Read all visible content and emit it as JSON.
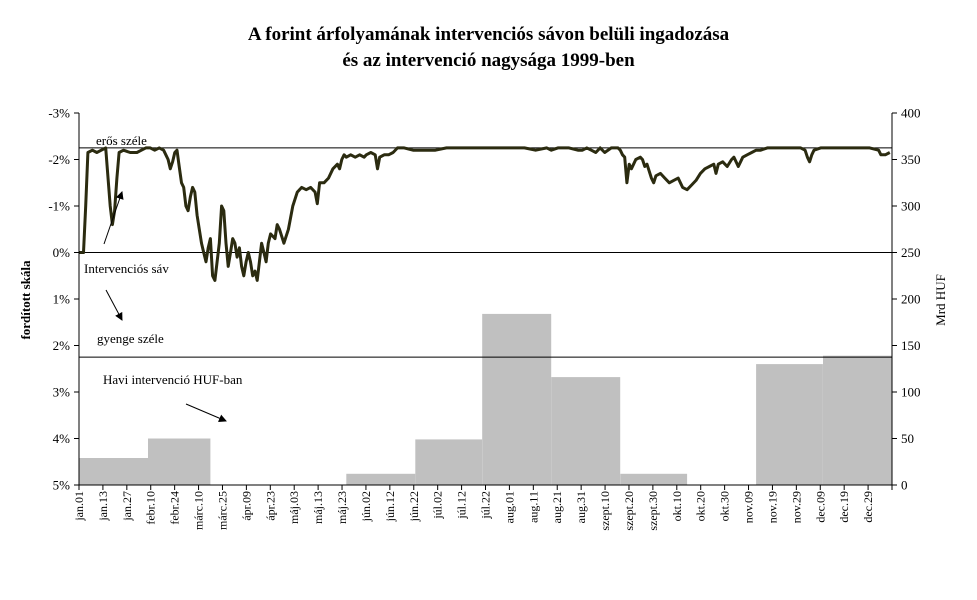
{
  "title": {
    "line1": "A forint árfolyamának intervenciós sávon belüli ingadozása",
    "line2": "és az intervenció nagysága 1999-ben"
  },
  "chart_data": {
    "type": "bar+line",
    "left_axis": {
      "label": "fordított skála",
      "ticks": [
        "-3%",
        "-2%",
        "-1%",
        "0%",
        "1%",
        "2%",
        "3%",
        "4%",
        "5%"
      ],
      "range": [
        -3,
        5
      ],
      "reversed": true
    },
    "right_axis": {
      "label": "Mrd HUF",
      "ticks": [
        "400",
        "350",
        "300",
        "250",
        "200",
        "150",
        "100",
        "50",
        "0"
      ],
      "range": [
        0,
        400
      ]
    },
    "x_ticks": [
      "jan.01",
      "jan.13",
      "jan.27",
      "febr.10",
      "febr.24",
      "márc.10",
      "márc.25",
      "ápr.09",
      "ápr.23",
      "máj.03",
      "máj.13",
      "máj.23",
      "jún.02",
      "jún.12",
      "jún.22",
      "júl.02",
      "júl.12",
      "júl.22",
      "aug.01",
      "aug.11",
      "aug.21",
      "aug.31",
      "szept.10",
      "szept.20",
      "szept.30",
      "okt.10",
      "okt.20",
      "okt.30",
      "nov.09",
      "nov.19",
      "nov.29",
      "dec.09",
      "dec.19",
      "dec.29"
    ],
    "reference_lines": [
      {
        "name": "erős széle",
        "value": -2.25
      },
      {
        "name": "0%",
        "value": 0
      },
      {
        "name": "gyenge széle",
        "value": 2.25
      }
    ],
    "annotations": [
      "erős széle",
      "Intervenciós sáv",
      "gyenge széle",
      "Havi intervenció HUF-ban"
    ],
    "bars": {
      "name": "Havi intervenció HUF-ban",
      "unit": "Mrd HUF",
      "months": [
        "jan",
        "feb",
        "márc",
        "ápr",
        "máj",
        "jún",
        "júl",
        "aug",
        "szept",
        "okt",
        "nov",
        "dec"
      ],
      "values": [
        29,
        50,
        0,
        0,
        12,
        49,
        184,
        116,
        12,
        0,
        130,
        139
      ]
    },
    "line": {
      "name": "Intervenciós sáv",
      "unit": "% (fordított skála)",
      "points": [
        [
          0,
          0.0
        ],
        [
          2,
          0.0
        ],
        [
          3,
          -1.0
        ],
        [
          4,
          -2.15
        ],
        [
          6,
          -2.2
        ],
        [
          8,
          -2.15
        ],
        [
          10,
          -2.2
        ],
        [
          12,
          -2.25
        ],
        [
          14,
          -1.0
        ],
        [
          15,
          -0.6
        ],
        [
          16,
          -0.9
        ],
        [
          17,
          -1.6
        ],
        [
          18,
          -2.15
        ],
        [
          20,
          -2.2
        ],
        [
          23,
          -2.15
        ],
        [
          26,
          -2.15
        ],
        [
          28,
          -2.2
        ],
        [
          30,
          -2.25
        ],
        [
          32,
          -2.25
        ],
        [
          34,
          -2.2
        ],
        [
          36,
          -2.25
        ],
        [
          38,
          -2.2
        ],
        [
          40,
          -2.0
        ],
        [
          41,
          -1.8
        ],
        [
          42,
          -1.95
        ],
        [
          43,
          -2.15
        ],
        [
          44,
          -2.2
        ],
        [
          45,
          -1.85
        ],
        [
          46,
          -1.5
        ],
        [
          47,
          -1.4
        ],
        [
          48,
          -1.0
        ],
        [
          49,
          -0.9
        ],
        [
          50,
          -1.2
        ],
        [
          51,
          -1.4
        ],
        [
          52,
          -1.3
        ],
        [
          53,
          -0.8
        ],
        [
          54,
          -0.5
        ],
        [
          55,
          -0.2
        ],
        [
          56,
          0.0
        ],
        [
          57,
          0.2
        ],
        [
          58,
          -0.1
        ],
        [
          59,
          -0.3
        ],
        [
          60,
          0.5
        ],
        [
          61,
          0.6
        ],
        [
          62,
          0.2
        ],
        [
          63,
          -0.2
        ],
        [
          64,
          -1.0
        ],
        [
          65,
          -0.9
        ],
        [
          66,
          -0.2
        ],
        [
          67,
          0.3
        ],
        [
          68,
          0.0
        ],
        [
          69,
          -0.3
        ],
        [
          70,
          -0.2
        ],
        [
          71,
          0.1
        ],
        [
          72,
          -0.1
        ],
        [
          73,
          0.3
        ],
        [
          74,
          0.5
        ],
        [
          75,
          0.2
        ],
        [
          76,
          0.0
        ],
        [
          77,
          0.2
        ],
        [
          78,
          0.5
        ],
        [
          79,
          0.4
        ],
        [
          80,
          0.6
        ],
        [
          81,
          0.2
        ],
        [
          82,
          -0.2
        ],
        [
          83,
          0.0
        ],
        [
          84,
          0.2
        ],
        [
          85,
          -0.2
        ],
        [
          86,
          -0.4
        ],
        [
          88,
          -0.3
        ],
        [
          89,
          -0.6
        ],
        [
          90,
          -0.5
        ],
        [
          92,
          -0.2
        ],
        [
          94,
          -0.5
        ],
        [
          96,
          -1.0
        ],
        [
          98,
          -1.3
        ],
        [
          100,
          -1.4
        ],
        [
          102,
          -1.35
        ],
        [
          104,
          -1.4
        ],
        [
          106,
          -1.3
        ],
        [
          107,
          -1.05
        ],
        [
          108,
          -1.5
        ],
        [
          110,
          -1.5
        ],
        [
          112,
          -1.6
        ],
        [
          114,
          -1.8
        ],
        [
          116,
          -1.9
        ],
        [
          117,
          -1.8
        ],
        [
          118,
          -2.0
        ],
        [
          119,
          -2.1
        ],
        [
          120,
          -2.05
        ],
        [
          122,
          -2.1
        ],
        [
          124,
          -2.05
        ],
        [
          126,
          -2.1
        ],
        [
          128,
          -2.05
        ],
        [
          129,
          -2.1
        ],
        [
          131,
          -2.15
        ],
        [
          133,
          -2.1
        ],
        [
          134,
          -1.8
        ],
        [
          135,
          -2.05
        ],
        [
          137,
          -2.1
        ],
        [
          139,
          -2.1
        ],
        [
          141,
          -2.15
        ],
        [
          143,
          -2.25
        ],
        [
          146,
          -2.25
        ],
        [
          150,
          -2.2
        ],
        [
          155,
          -2.2
        ],
        [
          160,
          -2.2
        ],
        [
          165,
          -2.25
        ],
        [
          170,
          -2.25
        ],
        [
          175,
          -2.25
        ],
        [
          180,
          -2.25
        ],
        [
          185,
          -2.25
        ],
        [
          190,
          -2.25
        ],
        [
          195,
          -2.25
        ],
        [
          200,
          -2.25
        ],
        [
          205,
          -2.2
        ],
        [
          210,
          -2.25
        ],
        [
          212,
          -2.2
        ],
        [
          215,
          -2.25
        ],
        [
          220,
          -2.25
        ],
        [
          224,
          -2.2
        ],
        [
          226,
          -2.2
        ],
        [
          228,
          -2.25
        ],
        [
          230,
          -2.2
        ],
        [
          232,
          -2.15
        ],
        [
          234,
          -2.25
        ],
        [
          236,
          -2.15
        ],
        [
          239,
          -2.25
        ],
        [
          242,
          -2.25
        ],
        [
          243,
          -2.2
        ],
        [
          244,
          -2.1
        ],
        [
          245,
          -2.05
        ],
        [
          246,
          -1.5
        ],
        [
          247,
          -1.9
        ],
        [
          248,
          -1.8
        ],
        [
          250,
          -2.0
        ],
        [
          252,
          -2.05
        ],
        [
          253,
          -2.0
        ],
        [
          254,
          -1.85
        ],
        [
          255,
          -1.9
        ],
        [
          257,
          -1.6
        ],
        [
          258,
          -1.5
        ],
        [
          259,
          -1.65
        ],
        [
          261,
          -1.7
        ],
        [
          263,
          -1.6
        ],
        [
          265,
          -1.5
        ],
        [
          267,
          -1.55
        ],
        [
          269,
          -1.6
        ],
        [
          271,
          -1.4
        ],
        [
          273,
          -1.35
        ],
        [
          275,
          -1.45
        ],
        [
          277,
          -1.55
        ],
        [
          279,
          -1.7
        ],
        [
          281,
          -1.8
        ],
        [
          283,
          -1.85
        ],
        [
          285,
          -1.9
        ],
        [
          286,
          -1.7
        ],
        [
          287,
          -1.9
        ],
        [
          289,
          -1.95
        ],
        [
          291,
          -1.85
        ],
        [
          293,
          -2.0
        ],
        [
          294,
          -2.05
        ],
        [
          296,
          -1.85
        ],
        [
          298,
          -2.05
        ],
        [
          300,
          -2.1
        ],
        [
          302,
          -2.15
        ],
        [
          304,
          -2.2
        ],
        [
          306,
          -2.2
        ],
        [
          309,
          -2.25
        ],
        [
          312,
          -2.25
        ],
        [
          315,
          -2.25
        ],
        [
          318,
          -2.25
        ],
        [
          321,
          -2.25
        ],
        [
          324,
          -2.25
        ],
        [
          326,
          -2.2
        ],
        [
          327,
          -2.05
        ],
        [
          328,
          -1.95
        ],
        [
          329,
          -2.1
        ],
        [
          330,
          -2.2
        ],
        [
          333,
          -2.25
        ],
        [
          336,
          -2.25
        ],
        [
          340,
          -2.25
        ],
        [
          345,
          -2.25
        ],
        [
          350,
          -2.25
        ],
        [
          355,
          -2.25
        ],
        [
          359,
          -2.2
        ],
        [
          360,
          -2.1
        ],
        [
          362,
          -2.1
        ],
        [
          364,
          -2.15
        ]
      ]
    }
  }
}
